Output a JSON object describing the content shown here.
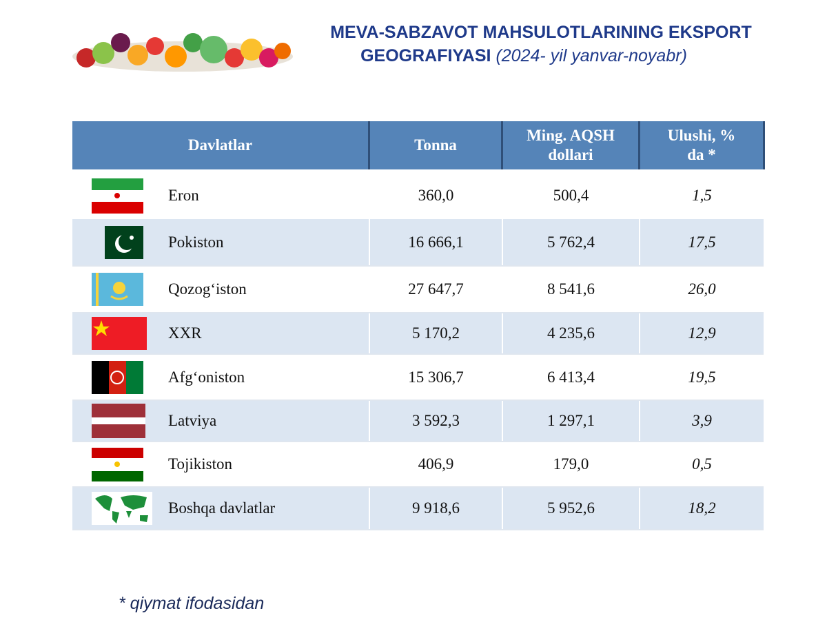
{
  "header": {
    "title_line1": "MEVA-SABZAVOT MAHSULOTLARINING EKSPORT",
    "title_line2": "GEOGRAFIYASI",
    "period": "(2024- yil yanvar-noyabr)"
  },
  "table": {
    "columns": [
      "Davlatlar",
      "Tonna",
      "Ming. AQSH dollari",
      "Ulushi, % da *"
    ],
    "rows": [
      [
        "Eron",
        "360,0",
        "500,4",
        "1,5"
      ],
      [
        "Pokiston",
        "16 666,1",
        "5 762,4",
        "17,5"
      ],
      [
        "Qozog‘iston",
        "27 647,7",
        "8 541,6",
        "26,0"
      ],
      [
        "XXR",
        "5 170,2",
        "4 235,6",
        "12,9"
      ],
      [
        "Afg‘oniston",
        "15 306,7",
        "6 413,4",
        "19,5"
      ],
      [
        "Latviya",
        "3 592,3",
        "1 297,1",
        "3,9"
      ],
      [
        "Tojikiston",
        "406,9",
        "179,0",
        "0,5"
      ],
      [
        "Boshqa davlatlar",
        "9 918,6",
        "5 952,6",
        "18,2"
      ]
    ]
  },
  "footnote": "* qiymat ifodasidan"
}
